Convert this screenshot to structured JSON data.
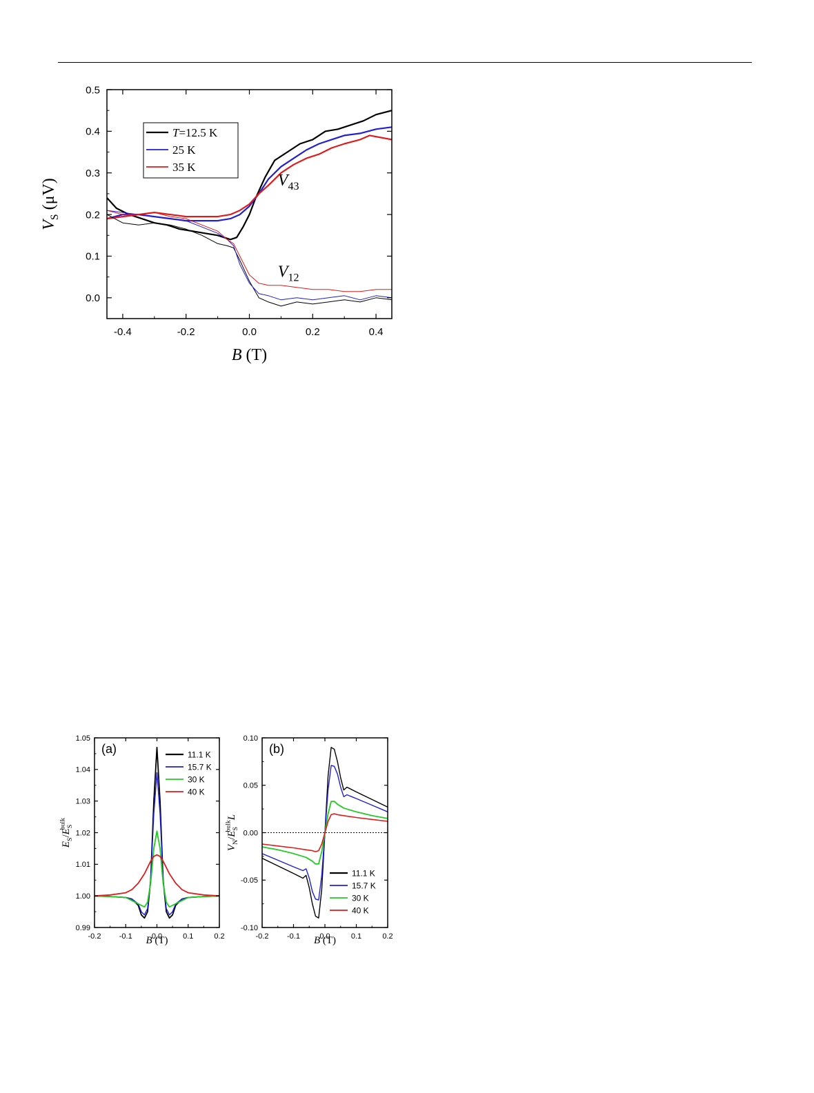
{
  "chart_data": [
    {
      "type": "line",
      "xlabel": {
        "var": "B",
        "unit": " (T)"
      },
      "ylabel": {
        "var": "V",
        "sub": "S",
        "unit": " (μV)"
      },
      "xlim": [
        -0.45,
        0.45
      ],
      "ylim": [
        -0.05,
        0.5
      ],
      "xticks": [
        -0.4,
        -0.2,
        0.0,
        0.2,
        0.4
      ],
      "yticks": [
        0.0,
        0.1,
        0.2,
        0.3,
        0.4,
        0.5
      ],
      "xtick_labels": [
        "-0.4",
        "-0.2",
        "0.0",
        "0.2",
        "0.4"
      ],
      "ytick_labels": [
        "0.0",
        "0.1",
        "0.2",
        "0.3",
        "0.4",
        "0.5"
      ],
      "legend": {
        "placement": "top-left",
        "entries": [
          {
            "prefix": "T",
            "text": "=12.5 K",
            "color": "#000000"
          },
          {
            "prefix": "",
            "text": "25 K",
            "color": "#1f1fd6"
          },
          {
            "prefix": "",
            "text": "35 K",
            "color": "#e01b1b"
          }
        ]
      },
      "annotations": [
        {
          "var": "V",
          "sub": "43",
          "x": 0.09,
          "y": 0.27
        },
        {
          "var": "V",
          "sub": "12",
          "x": 0.09,
          "y": 0.05
        }
      ],
      "series": [
        {
          "group": "V43",
          "color": "#000000",
          "width": 2.2,
          "x": [
            -0.45,
            -0.42,
            -0.38,
            -0.34,
            -0.3,
            -0.26,
            -0.22,
            -0.18,
            -0.14,
            -0.1,
            -0.08,
            -0.06,
            -0.04,
            -0.02,
            0.0,
            0.02,
            0.05,
            0.08,
            0.12,
            0.16,
            0.2,
            0.24,
            0.28,
            0.32,
            0.36,
            0.4,
            0.45
          ],
          "y": [
            0.24,
            0.215,
            0.2,
            0.19,
            0.18,
            0.175,
            0.165,
            0.16,
            0.155,
            0.15,
            0.145,
            0.14,
            0.145,
            0.17,
            0.2,
            0.24,
            0.29,
            0.33,
            0.35,
            0.37,
            0.38,
            0.4,
            0.405,
            0.415,
            0.425,
            0.44,
            0.45
          ]
        },
        {
          "group": "V43",
          "color": "#1f1fd6",
          "width": 2.2,
          "x": [
            -0.45,
            -0.4,
            -0.35,
            -0.3,
            -0.25,
            -0.2,
            -0.15,
            -0.1,
            -0.06,
            -0.03,
            0.0,
            0.03,
            0.06,
            0.1,
            0.14,
            0.18,
            0.22,
            0.26,
            0.3,
            0.35,
            0.4,
            0.45
          ],
          "y": [
            0.19,
            0.2,
            0.2,
            0.195,
            0.19,
            0.185,
            0.185,
            0.185,
            0.19,
            0.2,
            0.22,
            0.25,
            0.285,
            0.315,
            0.335,
            0.355,
            0.37,
            0.38,
            0.39,
            0.395,
            0.405,
            0.41
          ]
        },
        {
          "group": "V43",
          "color": "#e01b1b",
          "width": 2.2,
          "x": [
            -0.45,
            -0.4,
            -0.35,
            -0.3,
            -0.25,
            -0.2,
            -0.15,
            -0.1,
            -0.06,
            -0.03,
            0.0,
            0.03,
            0.06,
            0.1,
            0.14,
            0.18,
            0.22,
            0.26,
            0.3,
            0.35,
            0.38,
            0.45
          ],
          "y": [
            0.19,
            0.195,
            0.2,
            0.205,
            0.2,
            0.195,
            0.195,
            0.195,
            0.2,
            0.21,
            0.225,
            0.25,
            0.27,
            0.3,
            0.32,
            0.335,
            0.345,
            0.36,
            0.37,
            0.38,
            0.39,
            0.38
          ]
        },
        {
          "group": "V12",
          "color": "#000000",
          "width": 1,
          "x": [
            -0.45,
            -0.4,
            -0.35,
            -0.3,
            -0.25,
            -0.2,
            -0.15,
            -0.1,
            -0.07,
            -0.05,
            -0.03,
            0.0,
            0.03,
            0.06,
            0.1,
            0.15,
            0.2,
            0.25,
            0.3,
            0.35,
            0.4,
            0.45
          ],
          "y": [
            0.2,
            0.18,
            0.175,
            0.18,
            0.175,
            0.165,
            0.15,
            0.13,
            0.125,
            0.12,
            0.09,
            0.04,
            0.0,
            -0.01,
            -0.02,
            -0.01,
            -0.015,
            -0.01,
            -0.005,
            -0.01,
            0.0,
            -0.005
          ]
        },
        {
          "group": "V12",
          "color": "#1f1fd6",
          "width": 1,
          "x": [
            -0.45,
            -0.4,
            -0.35,
            -0.3,
            -0.25,
            -0.2,
            -0.15,
            -0.1,
            -0.07,
            -0.05,
            -0.03,
            0.0,
            0.03,
            0.06,
            0.1,
            0.15,
            0.2,
            0.25,
            0.3,
            0.35,
            0.4,
            0.45
          ],
          "y": [
            0.21,
            0.205,
            0.2,
            0.195,
            0.19,
            0.185,
            0.17,
            0.155,
            0.14,
            0.125,
            0.08,
            0.035,
            0.01,
            0.005,
            -0.005,
            0.0,
            -0.005,
            0.0,
            0.005,
            -0.005,
            0.005,
            0.0
          ]
        },
        {
          "group": "V12",
          "color": "#e01b1b",
          "width": 1,
          "x": [
            -0.45,
            -0.4,
            -0.35,
            -0.3,
            -0.25,
            -0.2,
            -0.15,
            -0.1,
            -0.07,
            -0.05,
            -0.03,
            0.0,
            0.03,
            0.06,
            0.1,
            0.15,
            0.2,
            0.25,
            0.3,
            0.35,
            0.4,
            0.45
          ],
          "y": [
            0.21,
            0.2,
            0.2,
            0.205,
            0.195,
            0.19,
            0.175,
            0.16,
            0.14,
            0.13,
            0.1,
            0.055,
            0.035,
            0.03,
            0.03,
            0.025,
            0.02,
            0.02,
            0.015,
            0.015,
            0.02,
            0.02
          ]
        }
      ]
    },
    {
      "type": "line",
      "panel_label": "(a)",
      "xlabel": {
        "var": "B",
        "unit": " (T)"
      },
      "ylabel": {
        "var": "E",
        "sub": "S",
        "mid": "/",
        "var2": "E",
        "sub2": "S",
        "sup2": "bulk"
      },
      "xlim": [
        -0.2,
        0.2
      ],
      "ylim": [
        0.99,
        1.05
      ],
      "xticks": [
        -0.2,
        -0.1,
        0.0,
        0.1,
        0.2
      ],
      "yticks": [
        0.99,
        1.0,
        1.01,
        1.02,
        1.03,
        1.04,
        1.05
      ],
      "xtick_labels": [
        "-0.2",
        "-0.1",
        "0.0",
        "0.1",
        "0.2"
      ],
      "ytick_labels": [
        "0.99",
        "1.00",
        "1.01",
        "1.02",
        "1.03",
        "1.04",
        "1.05"
      ],
      "legend": {
        "placement": "top-right",
        "entries": [
          {
            "text": "11.1 K",
            "color": "#000000"
          },
          {
            "text": "15.7 K",
            "color": "#1f1fd6"
          },
          {
            "text": "30 K",
            "color": "#22cc22"
          },
          {
            "text": "40 K",
            "color": "#e01b1b"
          }
        ]
      },
      "series": [
        {
          "name": "11.1 K",
          "color": "#000000",
          "width": 1.8,
          "x": [
            -0.2,
            -0.15,
            -0.1,
            -0.08,
            -0.06,
            -0.05,
            -0.04,
            -0.03,
            -0.02,
            -0.01,
            0.0,
            0.01,
            0.02,
            0.03,
            0.04,
            0.05,
            0.06,
            0.08,
            0.1,
            0.15,
            0.2
          ],
          "y": [
            1.0,
            0.9998,
            0.9995,
            0.999,
            0.997,
            0.994,
            0.993,
            0.995,
            1.005,
            1.03,
            1.047,
            1.03,
            1.005,
            0.995,
            0.993,
            0.994,
            0.997,
            0.999,
            0.9995,
            0.9998,
            1.0
          ]
        },
        {
          "name": "15.7 K",
          "color": "#1f1fd6",
          "width": 1.4,
          "x": [
            -0.2,
            -0.15,
            -0.1,
            -0.08,
            -0.06,
            -0.05,
            -0.04,
            -0.03,
            -0.02,
            -0.01,
            0.0,
            0.01,
            0.02,
            0.03,
            0.04,
            0.05,
            0.06,
            0.08,
            0.1,
            0.15,
            0.2
          ],
          "y": [
            1.0,
            0.9998,
            0.9995,
            0.999,
            0.9975,
            0.995,
            0.994,
            0.996,
            1.005,
            1.026,
            1.039,
            1.026,
            1.005,
            0.996,
            0.994,
            0.995,
            0.9975,
            0.999,
            0.9995,
            0.9998,
            1.0
          ]
        },
        {
          "name": "30 K",
          "color": "#22cc22",
          "width": 1.8,
          "x": [
            -0.2,
            -0.15,
            -0.1,
            -0.07,
            -0.05,
            -0.04,
            -0.03,
            -0.02,
            -0.01,
            0.0,
            0.01,
            0.02,
            0.03,
            0.04,
            0.05,
            0.07,
            0.1,
            0.15,
            0.2
          ],
          "y": [
            1.0,
            0.9998,
            0.9995,
            0.998,
            0.997,
            0.9965,
            0.998,
            1.004,
            1.015,
            1.0205,
            1.015,
            1.004,
            0.998,
            0.9965,
            0.997,
            0.998,
            0.9995,
            0.9998,
            1.0
          ]
        },
        {
          "name": "40 K",
          "color": "#e01b1b",
          "width": 1.8,
          "x": [
            -0.2,
            -0.15,
            -0.1,
            -0.08,
            -0.06,
            -0.04,
            -0.02,
            -0.01,
            0.0,
            0.01,
            0.02,
            0.04,
            0.06,
            0.08,
            0.1,
            0.15,
            0.2
          ],
          "y": [
            1.0,
            1.0003,
            1.001,
            1.002,
            1.004,
            1.007,
            1.011,
            1.0125,
            1.013,
            1.0125,
            1.011,
            1.007,
            1.004,
            1.002,
            1.001,
            1.0003,
            1.0
          ]
        }
      ]
    },
    {
      "type": "line",
      "panel_label": "(b)",
      "xlabel": {
        "var": "B",
        "unit": " (T)"
      },
      "ylabel": {
        "var": "V",
        "sub": "N",
        "mid": "/",
        "var2": "E",
        "sub2": "S",
        "sup2": "bulk",
        "tail": "L"
      },
      "xlim": [
        -0.2,
        0.2
      ],
      "ylim": [
        -0.1,
        0.1
      ],
      "xticks": [
        -0.2,
        -0.1,
        0.0,
        0.1,
        0.2
      ],
      "yticks": [
        -0.1,
        -0.05,
        0.0,
        0.05,
        0.1
      ],
      "xtick_labels": [
        "-0.2",
        "-0.1",
        "0.0",
        "0.1",
        "0.2"
      ],
      "ytick_labels": [
        "-0.10",
        "-0.05",
        "0.00",
        "0.05",
        "0.10"
      ],
      "zero_line": true,
      "legend": {
        "placement": "bottom-right",
        "entries": [
          {
            "text": "11.1 K",
            "color": "#000000"
          },
          {
            "text": "15.7 K",
            "color": "#1f1fd6"
          },
          {
            "text": "30 K",
            "color": "#22cc22"
          },
          {
            "text": "40 K",
            "color": "#e01b1b"
          }
        ]
      },
      "series": [
        {
          "name": "11.1 K",
          "color": "#000000",
          "width": 1.4,
          "x": [
            -0.2,
            -0.15,
            -0.1,
            -0.07,
            -0.06,
            -0.05,
            -0.04,
            -0.03,
            -0.02,
            -0.01,
            0.0,
            0.01,
            0.02,
            0.03,
            0.04,
            0.05,
            0.06,
            0.07,
            0.1,
            0.15,
            0.2
          ],
          "y": [
            -0.027,
            -0.035,
            -0.043,
            -0.048,
            -0.045,
            -0.058,
            -0.075,
            -0.088,
            -0.09,
            -0.06,
            0.0,
            0.06,
            0.09,
            0.088,
            0.075,
            0.058,
            0.045,
            0.048,
            0.043,
            0.035,
            0.027
          ]
        },
        {
          "name": "15.7 K",
          "color": "#1f1fd6",
          "width": 1.4,
          "x": [
            -0.2,
            -0.15,
            -0.1,
            -0.07,
            -0.06,
            -0.05,
            -0.04,
            -0.03,
            -0.02,
            -0.01,
            0.0,
            0.01,
            0.02,
            0.03,
            0.04,
            0.05,
            0.06,
            0.07,
            0.1,
            0.15,
            0.2
          ],
          "y": [
            -0.022,
            -0.029,
            -0.036,
            -0.04,
            -0.038,
            -0.048,
            -0.062,
            -0.07,
            -0.071,
            -0.045,
            0.0,
            0.045,
            0.071,
            0.07,
            0.062,
            0.048,
            0.038,
            0.04,
            0.036,
            0.029,
            0.022
          ]
        },
        {
          "name": "30 K",
          "color": "#22cc22",
          "width": 1.8,
          "x": [
            -0.2,
            -0.15,
            -0.1,
            -0.06,
            -0.04,
            -0.03,
            -0.02,
            -0.01,
            0.0,
            0.01,
            0.02,
            0.03,
            0.04,
            0.06,
            0.1,
            0.15,
            0.2
          ],
          "y": [
            -0.015,
            -0.018,
            -0.022,
            -0.026,
            -0.03,
            -0.033,
            -0.033,
            -0.02,
            0.0,
            0.02,
            0.033,
            0.033,
            0.03,
            0.026,
            0.022,
            0.018,
            0.015
          ]
        },
        {
          "name": "40 K",
          "color": "#e01b1b",
          "width": 1.6,
          "x": [
            -0.2,
            -0.15,
            -0.1,
            -0.06,
            -0.04,
            -0.03,
            -0.02,
            -0.01,
            0.0,
            0.01,
            0.02,
            0.03,
            0.04,
            0.06,
            0.1,
            0.15,
            0.2
          ],
          "y": [
            -0.012,
            -0.014,
            -0.016,
            -0.018,
            -0.019,
            -0.02,
            -0.019,
            -0.012,
            0.0,
            0.012,
            0.019,
            0.02,
            0.019,
            0.018,
            0.016,
            0.014,
            0.012
          ]
        }
      ]
    }
  ]
}
